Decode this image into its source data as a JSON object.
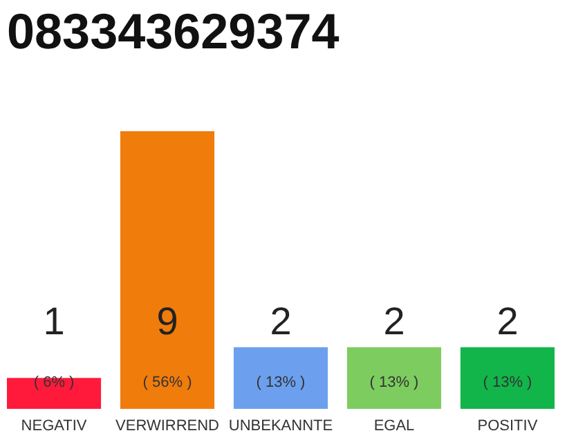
{
  "chart_data": {
    "type": "bar",
    "title": "083343629374",
    "categories": [
      "NEGATIV",
      "VERWIRREND",
      "UNBEKANNTE",
      "EGAL",
      "POSITIV"
    ],
    "values": [
      1,
      9,
      2,
      2,
      2
    ],
    "colors": [
      "#ff1a3c",
      "#f07c0c",
      "#6ca0ee",
      "#7dcc5f",
      "#12b54a"
    ],
    "ylim": [
      0,
      9
    ],
    "data_labels": true,
    "annotations": [
      "( 6% )",
      "( 56% )",
      "( 13% )",
      "( 13% )",
      "( 13% )"
    ]
  }
}
